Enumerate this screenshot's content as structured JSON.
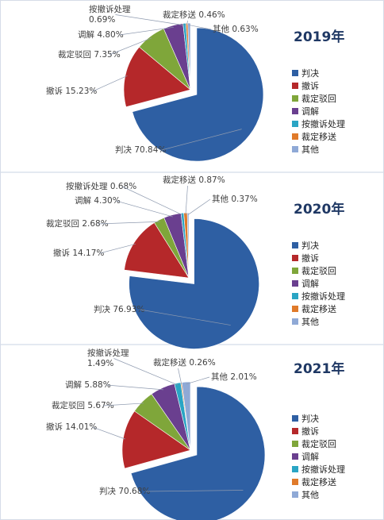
{
  "chart_data": [
    {
      "type": "pie",
      "title": "2019年",
      "categories": [
        "判决",
        "撤诉",
        "裁定驳回",
        "调解",
        "按撤诉处理",
        "裁定移送",
        "其他"
      ],
      "values": [
        70.84,
        15.23,
        7.35,
        4.8,
        0.69,
        0.46,
        0.63
      ],
      "labels": [
        "判决 70.84%",
        "撤诉 15.23%",
        "裁定驳回 7.35%",
        "调解 4.80%",
        "按撤诉处理\n0.69%",
        "裁定移送 0.46%",
        "其他 0.63%"
      ],
      "legend": "right",
      "exploded": [
        "判决"
      ]
    },
    {
      "type": "pie",
      "title": "2020年",
      "categories": [
        "判决",
        "撤诉",
        "裁定驳回",
        "调解",
        "按撤诉处理",
        "裁定移送",
        "其他"
      ],
      "values": [
        76.93,
        14.17,
        2.68,
        4.3,
        0.68,
        0.87,
        0.37
      ],
      "labels": [
        "判决 76.93%",
        "撤诉 14.17%",
        "裁定驳回 2.68%",
        "调解 4.30%",
        "按撤诉处理 0.68%",
        "裁定移送 0.87%",
        "其他 0.37%"
      ],
      "legend": "right",
      "exploded": [
        "判决"
      ]
    },
    {
      "type": "pie",
      "title": "2021年",
      "categories": [
        "判决",
        "撤诉",
        "裁定驳回",
        "调解",
        "按撤诉处理",
        "裁定移送",
        "其他"
      ],
      "values": [
        70.68,
        14.01,
        5.67,
        5.88,
        1.49,
        0.26,
        2.01
      ],
      "labels": [
        "判决 70.68%",
        "撤诉 14.01%",
        "裁定驳回 5.67%",
        "调解 5.88%",
        "按撤诉处理\n1.49%",
        "裁定移送 0.26%",
        "其他 2.01%"
      ],
      "legend": "right",
      "exploded": [
        "判决"
      ]
    }
  ],
  "colors": [
    "#2e5fa3",
    "#b5282a",
    "#7fa63a",
    "#6a3f8f",
    "#2aa5c4",
    "#e07a2a",
    "#8fa9d6"
  ]
}
